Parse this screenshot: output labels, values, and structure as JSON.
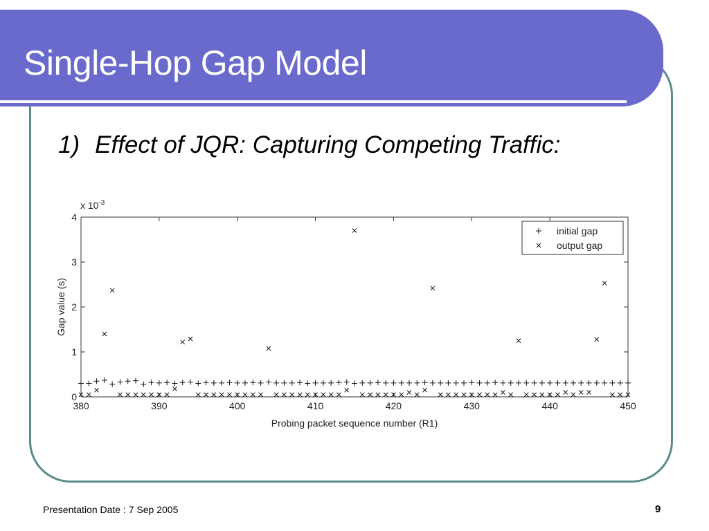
{
  "slide": {
    "title": "Single-Hop Gap Model",
    "subtitle_number": "1)",
    "subtitle_text": "Effect of JQR: Capturing Competing Traffic:",
    "footer_left": "Presentation Date : 7 Sep 2005",
    "page_number": "9",
    "title_color": "#6a6acd",
    "frame_color": "#5b8a8a"
  },
  "chart_data": {
    "type": "scatter",
    "xlabel": "Probing packet sequence number (R1)",
    "ylabel": "Gap value (s)",
    "y_multiplier_label": "x 10",
    "y_multiplier_exponent": "-3",
    "xlim": [
      380,
      450
    ],
    "ylim": [
      0,
      4
    ],
    "x_ticks": [
      "380",
      "390",
      "400",
      "410",
      "420",
      "430",
      "440",
      "450"
    ],
    "y_ticks": [
      "0",
      "1",
      "2",
      "3",
      "4"
    ],
    "grid": false,
    "legend_position": "top-right",
    "series": [
      {
        "name": "initial gap",
        "marker": "+",
        "x": [
          380,
          381,
          382,
          383,
          384,
          385,
          386,
          387,
          388,
          389,
          390,
          391,
          392,
          393,
          394,
          395,
          396,
          397,
          398,
          399,
          400,
          401,
          402,
          403,
          404,
          405,
          406,
          407,
          408,
          409,
          410,
          411,
          412,
          413,
          414,
          415,
          416,
          417,
          418,
          419,
          420,
          421,
          422,
          423,
          424,
          425,
          426,
          427,
          428,
          429,
          430,
          431,
          432,
          433,
          434,
          435,
          436,
          437,
          438,
          439,
          440,
          441,
          442,
          443,
          444,
          445,
          446,
          447,
          448,
          449,
          450
        ],
        "y": [
          0.3,
          0.3,
          0.35,
          0.37,
          0.28,
          0.33,
          0.35,
          0.36,
          0.28,
          0.32,
          0.31,
          0.32,
          0.3,
          0.32,
          0.33,
          0.3,
          0.32,
          0.31,
          0.31,
          0.32,
          0.31,
          0.31,
          0.32,
          0.31,
          0.33,
          0.31,
          0.31,
          0.31,
          0.32,
          0.3,
          0.31,
          0.31,
          0.31,
          0.32,
          0.33,
          0.3,
          0.31,
          0.31,
          0.32,
          0.31,
          0.31,
          0.31,
          0.31,
          0.31,
          0.32,
          0.31,
          0.31,
          0.31,
          0.31,
          0.31,
          0.32,
          0.31,
          0.31,
          0.32,
          0.31,
          0.31,
          0.31,
          0.31,
          0.31,
          0.31,
          0.31,
          0.31,
          0.31,
          0.31,
          0.31,
          0.31,
          0.31,
          0.31,
          0.31,
          0.31,
          0.31
        ]
      },
      {
        "name": "output gap",
        "marker": "x",
        "x": [
          380,
          381,
          382,
          383,
          384,
          385,
          386,
          387,
          388,
          389,
          390,
          391,
          392,
          393,
          394,
          395,
          396,
          397,
          398,
          399,
          400,
          401,
          402,
          403,
          404,
          405,
          406,
          407,
          408,
          409,
          410,
          411,
          412,
          413,
          414,
          415,
          416,
          417,
          418,
          419,
          420,
          421,
          422,
          423,
          424,
          425,
          426,
          427,
          428,
          429,
          430,
          431,
          432,
          433,
          434,
          435,
          436,
          437,
          438,
          439,
          440,
          441,
          442,
          443,
          444,
          445,
          446,
          447,
          448,
          449,
          450
        ],
        "y": [
          0.05,
          0.05,
          0.15,
          1.4,
          2.37,
          0.05,
          0.05,
          0.05,
          0.05,
          0.05,
          0.05,
          0.05,
          0.18,
          1.22,
          1.29,
          0.05,
          0.05,
          0.05,
          0.05,
          0.05,
          0.05,
          0.05,
          0.05,
          0.05,
          1.08,
          0.05,
          0.05,
          0.05,
          0.05,
          0.05,
          0.05,
          0.05,
          0.05,
          0.05,
          0.15,
          3.7,
          0.05,
          0.05,
          0.05,
          0.05,
          0.05,
          0.05,
          0.1,
          0.05,
          0.15,
          2.42,
          0.05,
          0.05,
          0.05,
          0.05,
          0.05,
          0.05,
          0.05,
          0.05,
          0.1,
          0.05,
          1.25,
          0.05,
          0.05,
          0.05,
          0.05,
          0.05,
          0.1,
          0.05,
          0.1,
          0.1,
          1.28,
          2.53,
          0.05,
          0.05,
          0.05
        ]
      }
    ]
  }
}
